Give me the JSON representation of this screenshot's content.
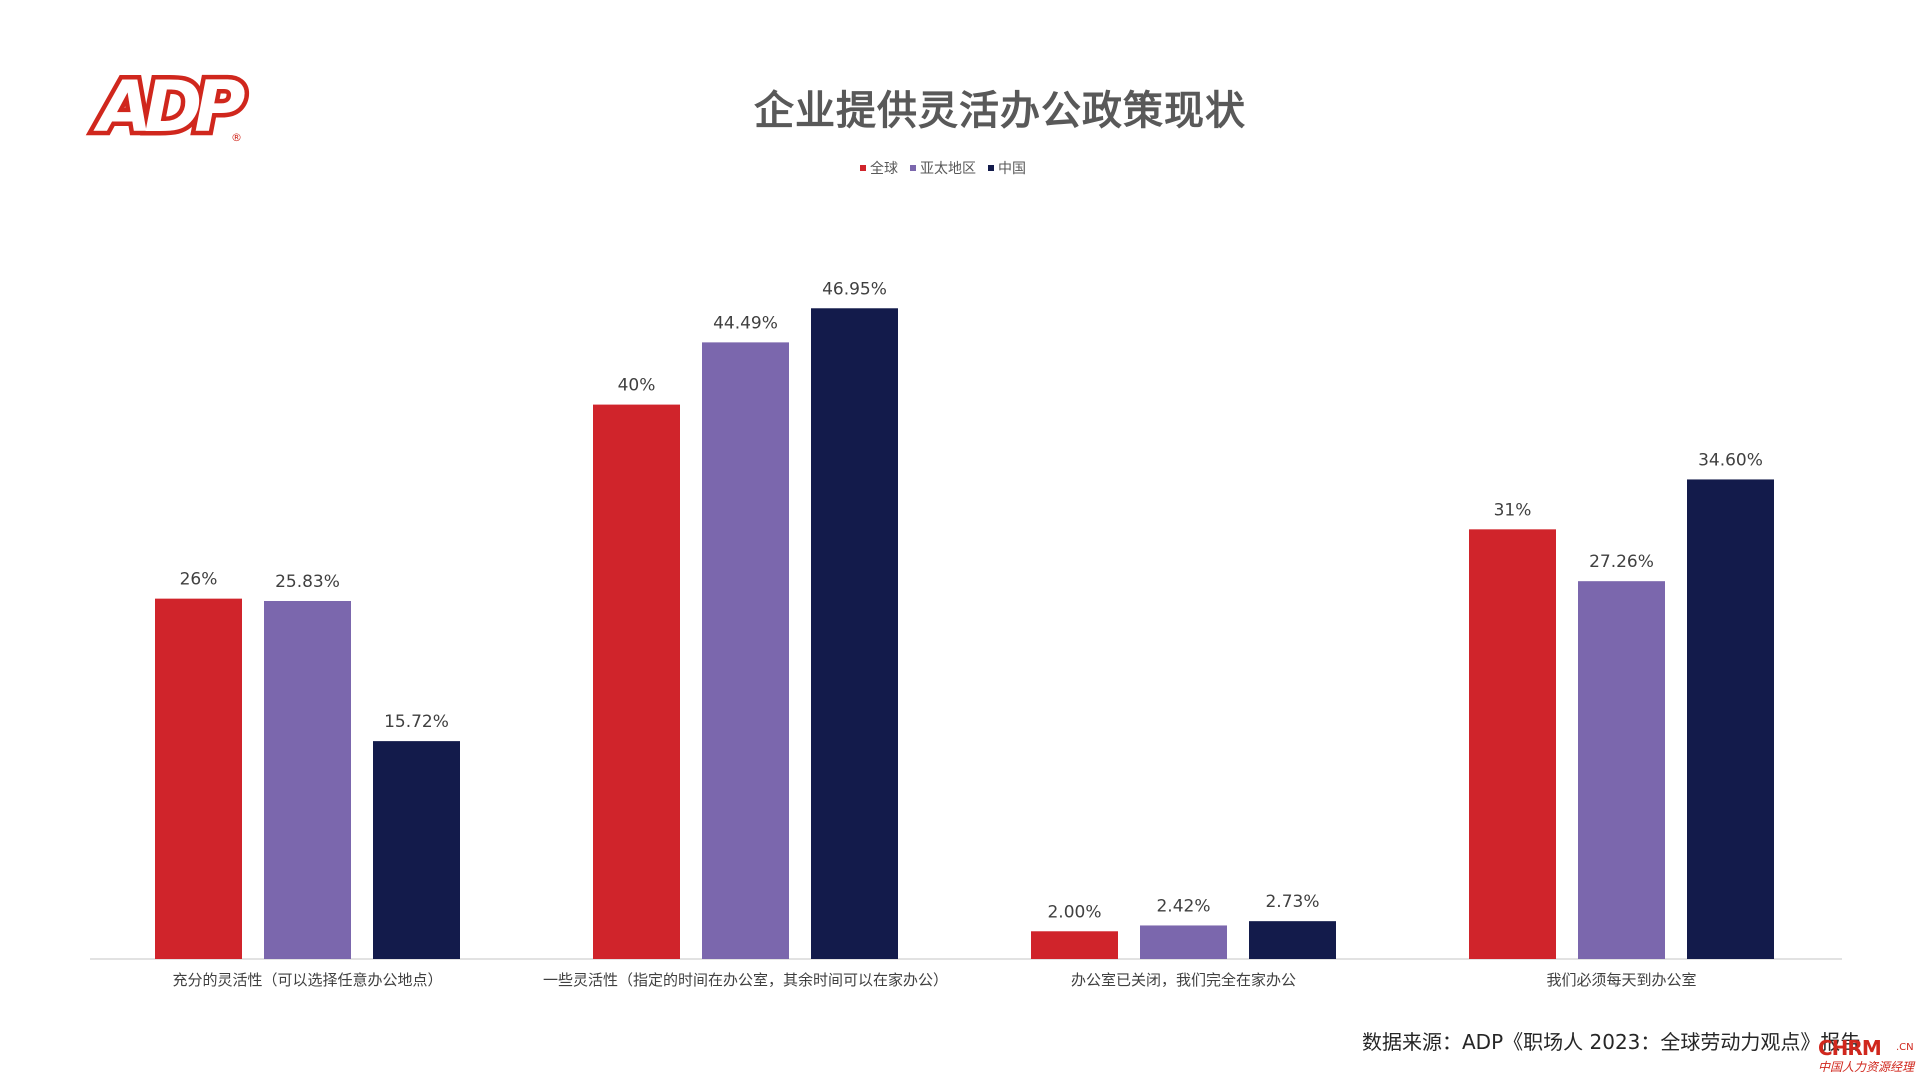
{
  "logo": {
    "text": "ADP",
    "reg": "®"
  },
  "chart_data": {
    "type": "bar",
    "title": "企业提供灵活办公政策现状",
    "categories": [
      "充分的灵活性（可以选择任意办公地点）",
      "一些灵活性（指定的时间在办公室，其余时间可以在家办公）",
      "办公室已关闭，我们完全在家办公",
      "我们必须每天到办公室"
    ],
    "series": [
      {
        "name": "全球",
        "color": "#d0242b",
        "values": [
          26,
          40,
          2.0,
          31
        ],
        "labels": [
          "26%",
          "40%",
          "2.00%",
          "31%"
        ]
      },
      {
        "name": "亚太地区",
        "color": "#7b67ad",
        "values": [
          25.83,
          44.49,
          2.42,
          27.26
        ],
        "labels": [
          "25.83%",
          "44.49%",
          "2.42%",
          "27.26%"
        ]
      },
      {
        "name": "中国",
        "color": "#131b4b",
        "values": [
          15.72,
          46.95,
          2.73,
          34.6
        ],
        "labels": [
          "15.72%",
          "46.95%",
          "2.73%",
          "34.60%"
        ]
      }
    ],
    "ylim": [
      0,
      50
    ],
    "legend_position": "top-center",
    "grid": false
  },
  "source": "数据来源：ADP《职场人 2023：全球劳动力观点》报告",
  "watermark": {
    "main": "CHRM",
    "cn": ".CN",
    "sub": "中国人力资源经理"
  }
}
